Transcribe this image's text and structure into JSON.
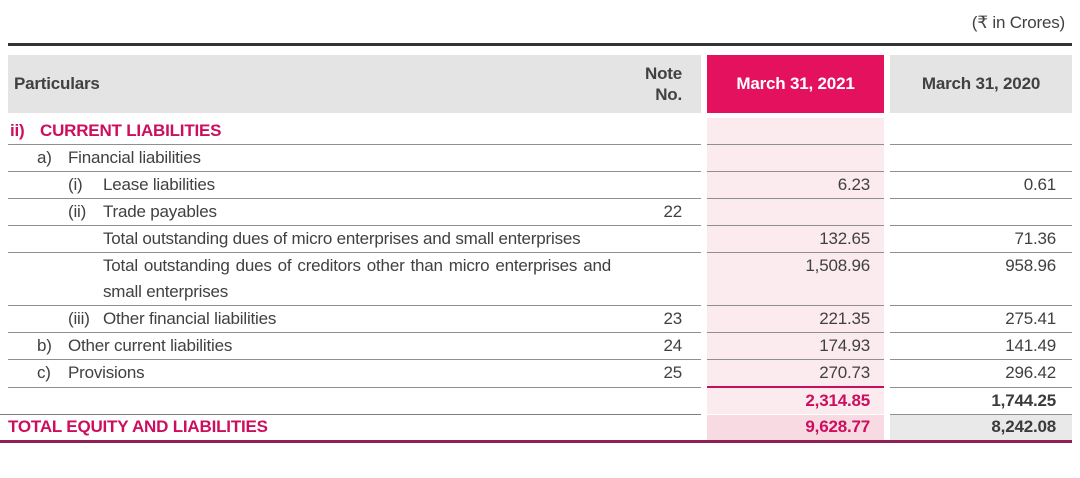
{
  "units_note": "(₹ in Crores)",
  "colors": {
    "accent_pink": "#e4115f",
    "light_pink_column": "#fcebee",
    "total_row_pink": "#f8dbe2",
    "header_gray": "#e4e4e5",
    "total_row_gray": "#e9e9ea",
    "separator_line": "#8f8f8f",
    "top_rule": "#343434",
    "bottom_rule": "#8b2155",
    "magenta_text": "#cc0e5e",
    "text": "#414042"
  },
  "table": {
    "header": {
      "particulars": "Particulars",
      "note_line1": "Note",
      "note_line2": "No.",
      "col_2021": "March 31, 2021",
      "col_2020": "March 31, 2020"
    },
    "rows": [
      {
        "kind": "section",
        "level": 0,
        "marker": "ii)",
        "label": "CURRENT LIABILITIES",
        "note": "",
        "v2021": "",
        "v2020": ""
      },
      {
        "kind": "item",
        "level": 1,
        "marker": "a)",
        "label": "Financial liabilities",
        "note": "",
        "v2021": "",
        "v2020": ""
      },
      {
        "kind": "item",
        "level": 2,
        "marker": "(i)",
        "label": "Lease liabilities",
        "note": "",
        "v2021": "6.23",
        "v2020": "0.61"
      },
      {
        "kind": "item",
        "level": 2,
        "marker": "(ii)",
        "label": "Trade payables",
        "note": "22",
        "v2021": "",
        "v2020": ""
      },
      {
        "kind": "wrap",
        "level": 3,
        "marker": "",
        "label": "Total outstanding dues of micro enterprises and small enterprises",
        "note": "",
        "v2021": "132.65",
        "v2020": "71.36"
      },
      {
        "kind": "wrap",
        "level": 3,
        "marker": "",
        "label": "Total outstanding dues of creditors other than micro enterprises and small enterprises",
        "note": "",
        "v2021": "1,508.96",
        "v2020": "958.96"
      },
      {
        "kind": "item",
        "level": 2,
        "marker": "(iii)",
        "label": "Other financial liabilities",
        "note": "23",
        "v2021": "221.35",
        "v2020": "275.41"
      },
      {
        "kind": "item",
        "level": 1,
        "marker": "b)",
        "label": "Other current liabilities",
        "note": "24",
        "v2021": "174.93",
        "v2020": "141.49"
      },
      {
        "kind": "provisions",
        "level": 1,
        "marker": "c)",
        "label": "Provisions",
        "note": "25",
        "v2021": "270.73",
        "v2020": "296.42"
      },
      {
        "kind": "subtotal",
        "level": 0,
        "marker": "",
        "label": "",
        "note": "",
        "v2021": "2,314.85",
        "v2020": "1,744.25"
      },
      {
        "kind": "total",
        "level": 0,
        "marker": "",
        "label": "TOTAL EQUITY AND LIABILITIES",
        "note": "",
        "v2021": "9,628.77",
        "v2020": "8,242.08"
      }
    ]
  }
}
